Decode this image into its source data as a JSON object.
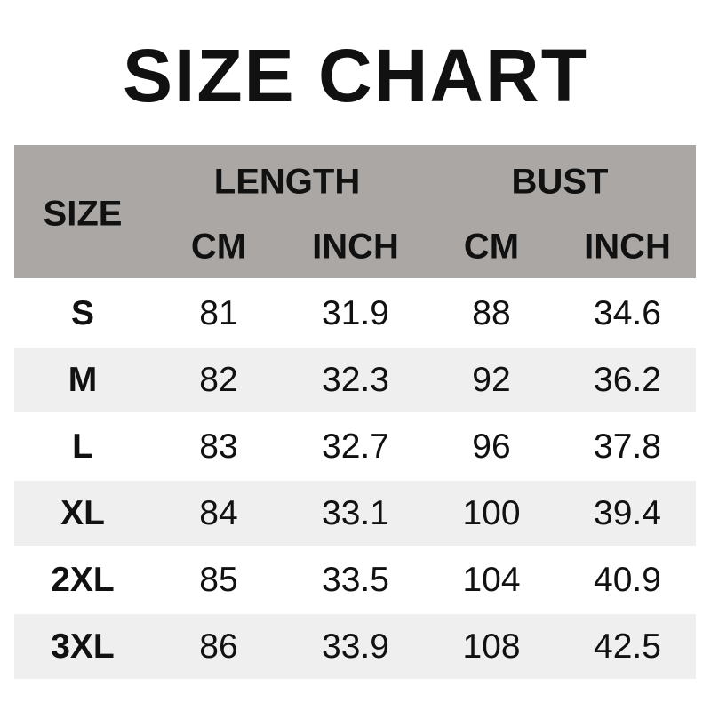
{
  "title": "SIZE CHART",
  "header": {
    "size": "SIZE",
    "length": "LENGTH",
    "bust": "BUST",
    "cm": "CM",
    "inch": "INCH"
  },
  "colors": {
    "header_bg": "#aaa7a5",
    "stripe_bg": "#efefef"
  },
  "rows": [
    {
      "size": "S",
      "length_cm": "81",
      "length_inch": "31.9",
      "bust_cm": "88",
      "bust_inch": "34.6"
    },
    {
      "size": "M",
      "length_cm": "82",
      "length_inch": "32.3",
      "bust_cm": "92",
      "bust_inch": "36.2"
    },
    {
      "size": "L",
      "length_cm": "83",
      "length_inch": "32.7",
      "bust_cm": "96",
      "bust_inch": "37.8"
    },
    {
      "size": "XL",
      "length_cm": "84",
      "length_inch": "33.1",
      "bust_cm": "100",
      "bust_inch": "39.4"
    },
    {
      "size": "2XL",
      "length_cm": "85",
      "length_inch": "33.5",
      "bust_cm": "104",
      "bust_inch": "40.9"
    },
    {
      "size": "3XL",
      "length_cm": "86",
      "length_inch": "33.9",
      "bust_cm": "108",
      "bust_inch": "42.5"
    }
  ]
}
